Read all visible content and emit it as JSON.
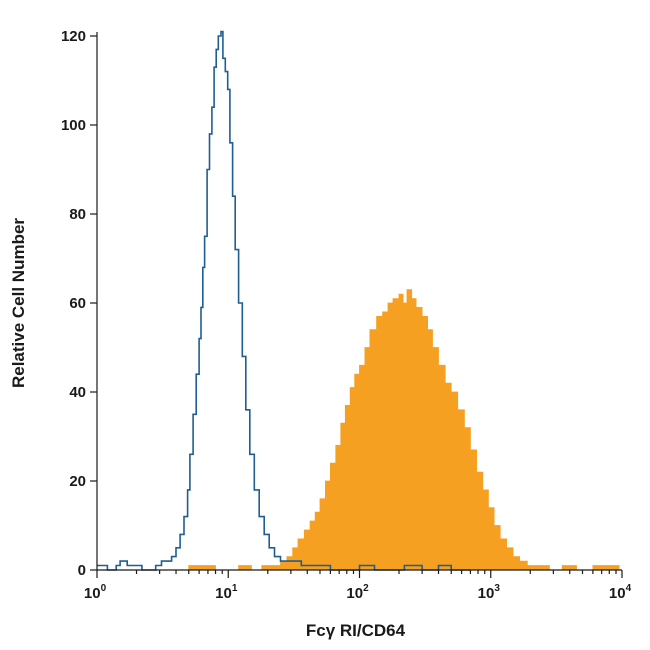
{
  "chart_data": {
    "type": "histogram",
    "xlabel": "Fcγ RI/CD64",
    "ylabel": "Relative Cell Number",
    "xscale": "log",
    "xlim": [
      1,
      10000
    ],
    "ylim": [
      0,
      120
    ],
    "y_ticks": [
      0,
      20,
      40,
      60,
      80,
      100,
      120
    ],
    "x_ticks": [
      {
        "value": 1,
        "base": "10",
        "exp": "0"
      },
      {
        "value": 10,
        "base": "10",
        "exp": "1"
      },
      {
        "value": 100,
        "base": "10",
        "exp": "2"
      },
      {
        "value": 1000,
        "base": "10",
        "exp": "3"
      },
      {
        "value": 10000,
        "base": "10",
        "exp": "4"
      }
    ],
    "series": [
      {
        "kind": "outline",
        "color": "#1f5e91",
        "points": [
          [
            1.0,
            1
          ],
          [
            1.1,
            1
          ],
          [
            1.2,
            0
          ],
          [
            1.4,
            1
          ],
          [
            1.5,
            2
          ],
          [
            1.7,
            1
          ],
          [
            1.9,
            1
          ],
          [
            2.2,
            0
          ],
          [
            2.5,
            0
          ],
          [
            2.8,
            1
          ],
          [
            3.1,
            2
          ],
          [
            3.4,
            2
          ],
          [
            3.7,
            3
          ],
          [
            4.0,
            5
          ],
          [
            4.3,
            8
          ],
          [
            4.6,
            12
          ],
          [
            4.9,
            18
          ],
          [
            5.1,
            26
          ],
          [
            5.4,
            35
          ],
          [
            5.7,
            44
          ],
          [
            6.0,
            52
          ],
          [
            6.2,
            59
          ],
          [
            6.4,
            68
          ],
          [
            6.6,
            75
          ],
          [
            6.9,
            90
          ],
          [
            7.2,
            98
          ],
          [
            7.5,
            104
          ],
          [
            7.8,
            113
          ],
          [
            8.1,
            117
          ],
          [
            8.4,
            120
          ],
          [
            8.8,
            121
          ],
          [
            9.1,
            115
          ],
          [
            9.5,
            112
          ],
          [
            9.9,
            108
          ],
          [
            10.3,
            96
          ],
          [
            10.8,
            84
          ],
          [
            11.3,
            72
          ],
          [
            12.0,
            60
          ],
          [
            12.8,
            48
          ],
          [
            13.6,
            36
          ],
          [
            14.6,
            26
          ],
          [
            15.8,
            18
          ],
          [
            17.2,
            12
          ],
          [
            18.8,
            8
          ],
          [
            20.5,
            5
          ],
          [
            22.5,
            3
          ],
          [
            25,
            2
          ],
          [
            28,
            2
          ],
          [
            32,
            2
          ],
          [
            36,
            1
          ],
          [
            40,
            1
          ],
          [
            50,
            1
          ],
          [
            60,
            0
          ],
          [
            80,
            0
          ],
          [
            100,
            1
          ],
          [
            130,
            0
          ],
          [
            170,
            0
          ],
          [
            220,
            1
          ],
          [
            300,
            0
          ],
          [
            400,
            1
          ],
          [
            500,
            0
          ],
          [
            700,
            0
          ]
        ]
      },
      {
        "kind": "filled",
        "color": "#f5a020",
        "points": [
          [
            5.0,
            1
          ],
          [
            8,
            0
          ],
          [
            12,
            1
          ],
          [
            15,
            0
          ],
          [
            18,
            1
          ],
          [
            22,
            1
          ],
          [
            25,
            2
          ],
          [
            28,
            3
          ],
          [
            31,
            5
          ],
          [
            34,
            7
          ],
          [
            38,
            9
          ],
          [
            42,
            11
          ],
          [
            46,
            13
          ],
          [
            50,
            16
          ],
          [
            55,
            20
          ],
          [
            60,
            24
          ],
          [
            66,
            28
          ],
          [
            72,
            33
          ],
          [
            78,
            37
          ],
          [
            85,
            41
          ],
          [
            92,
            44
          ],
          [
            100,
            46
          ],
          [
            110,
            50
          ],
          [
            120,
            54
          ],
          [
            135,
            57
          ],
          [
            150,
            58
          ],
          [
            165,
            60
          ],
          [
            180,
            61
          ],
          [
            200,
            62
          ],
          [
            215,
            60
          ],
          [
            230,
            63
          ],
          [
            250,
            61
          ],
          [
            270,
            59
          ],
          [
            300,
            57
          ],
          [
            330,
            54
          ],
          [
            360,
            50
          ],
          [
            400,
            46
          ],
          [
            450,
            42
          ],
          [
            500,
            40
          ],
          [
            560,
            36
          ],
          [
            630,
            32
          ],
          [
            700,
            27
          ],
          [
            780,
            22
          ],
          [
            870,
            18
          ],
          [
            960,
            14
          ],
          [
            1060,
            10
          ],
          [
            1180,
            7
          ],
          [
            1320,
            5
          ],
          [
            1480,
            3
          ],
          [
            1660,
            2
          ],
          [
            1900,
            1
          ],
          [
            2300,
            1
          ],
          [
            2800,
            0
          ],
          [
            3500,
            1
          ],
          [
            4500,
            0
          ],
          [
            6000,
            1
          ],
          [
            8000,
            1
          ],
          [
            9500,
            0
          ]
        ]
      }
    ]
  }
}
